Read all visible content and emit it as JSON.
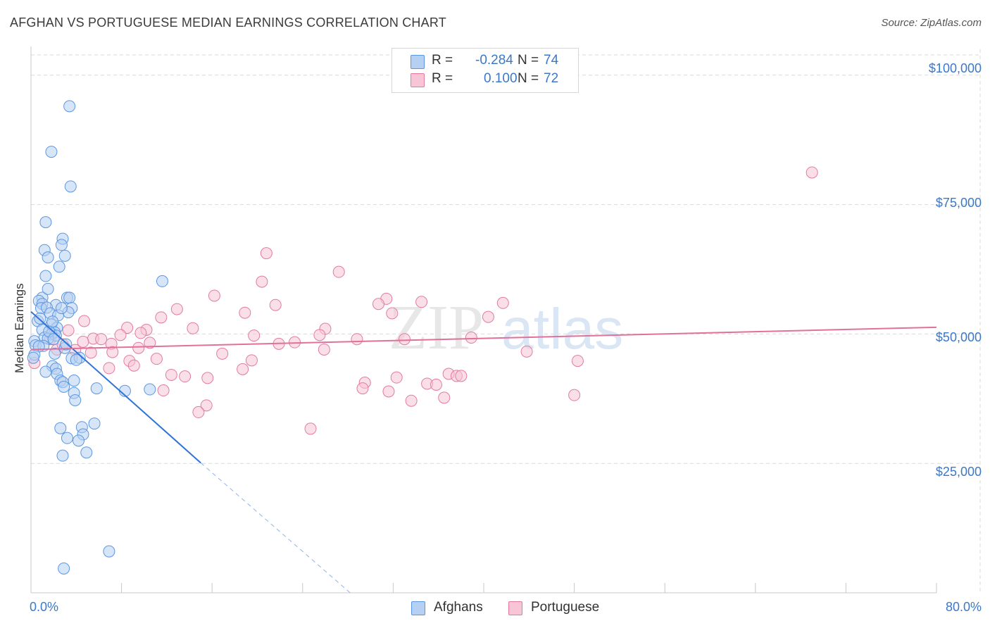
{
  "title": "AFGHAN VS PORTUGUESE MEDIAN EARNINGS CORRELATION CHART",
  "source": "Source: ZipAtlas.com",
  "watermark": {
    "zip": "ZIP",
    "atlas": "atlas"
  },
  "colors": {
    "afghan": "#5b97e1",
    "afghan_fill": "#b6d0f3",
    "portuguese": "#e27ba0",
    "portuguese_fill": "#f7c5d6",
    "axis_text": "#3b78c9",
    "grid": "#d9d9d9"
  },
  "legend": {
    "rows": [
      {
        "r_label": "R =",
        "r_value": "-0.284",
        "n_label": "N =",
        "n_value": "74"
      },
      {
        "r_label": "R =",
        "r_value": "0.100",
        "n_label": "N =",
        "n_value": "72"
      }
    ]
  },
  "bottom_legend": {
    "afghan": "Afghans",
    "portuguese": "Portuguese"
  },
  "chart_data": {
    "type": "scatter",
    "title": "AFGHAN VS PORTUGUESE MEDIAN EARNINGS CORRELATION CHART",
    "xlabel": "",
    "ylabel": "Median Earnings",
    "xlim": [
      0,
      80
    ],
    "ylim": [
      0,
      105000
    ],
    "x_tick_labels": {
      "min": "0.0%",
      "max": "80.0%"
    },
    "y_ticks": [
      {
        "value": 25000,
        "label": "$25,000"
      },
      {
        "value": 50000,
        "label": "$50,000"
      },
      {
        "value": 75000,
        "label": "$75,000"
      },
      {
        "value": 100000,
        "label": "$100,000"
      }
    ],
    "grid": true,
    "series": [
      {
        "name": "Afghans",
        "r": -0.284,
        "n": 74,
        "trend": {
          "x0": 0,
          "y0": 54300,
          "x1": 15,
          "y1": 25100,
          "dash_to_x": 28.2,
          "dash_to_y": 0
        },
        "points": [
          [
            3.4,
            94000
          ],
          [
            1.8,
            85200
          ],
          [
            3.5,
            78500
          ],
          [
            1.3,
            71600
          ],
          [
            2.8,
            68400
          ],
          [
            2.7,
            67200
          ],
          [
            1.2,
            66200
          ],
          [
            3.0,
            65100
          ],
          [
            1.5,
            64800
          ],
          [
            2.5,
            63000
          ],
          [
            1.3,
            61200
          ],
          [
            11.6,
            60200
          ],
          [
            1.0,
            57000
          ],
          [
            1.5,
            58700
          ],
          [
            3.2,
            57000
          ],
          [
            3.4,
            57000
          ],
          [
            0.7,
            56400
          ],
          [
            1.0,
            55800
          ],
          [
            2.2,
            55600
          ],
          [
            0.9,
            55000
          ],
          [
            1.4,
            55100
          ],
          [
            3.6,
            55000
          ],
          [
            1.7,
            54000
          ],
          [
            3.3,
            54200
          ],
          [
            2.4,
            53600
          ],
          [
            0.6,
            52500
          ],
          [
            1.8,
            51800
          ],
          [
            1.0,
            50800
          ],
          [
            2.3,
            51200
          ],
          [
            2.1,
            50300
          ],
          [
            1.8,
            50000
          ],
          [
            2.2,
            49700
          ],
          [
            1.2,
            49300
          ],
          [
            1.5,
            49100
          ],
          [
            0.3,
            48600
          ],
          [
            0.4,
            47800
          ],
          [
            1.1,
            47700
          ],
          [
            0.7,
            47600
          ],
          [
            3.0,
            47300
          ],
          [
            2.1,
            46200
          ],
          [
            0.3,
            46000
          ],
          [
            0.2,
            45400
          ],
          [
            3.6,
            45300
          ],
          [
            4.3,
            45400
          ],
          [
            1.9,
            43800
          ],
          [
            2.2,
            43300
          ],
          [
            1.3,
            42700
          ],
          [
            2.3,
            42300
          ],
          [
            2.6,
            41000
          ],
          [
            3.8,
            41000
          ],
          [
            2.8,
            40700
          ],
          [
            2.9,
            39800
          ],
          [
            5.8,
            39500
          ],
          [
            8.3,
            39000
          ],
          [
            10.5,
            39300
          ],
          [
            3.8,
            38600
          ],
          [
            3.9,
            37200
          ],
          [
            5.6,
            32700
          ],
          [
            2.6,
            31800
          ],
          [
            4.5,
            32000
          ],
          [
            4.6,
            30600
          ],
          [
            3.2,
            29900
          ],
          [
            4.2,
            29400
          ],
          [
            4.9,
            27100
          ],
          [
            2.8,
            26500
          ],
          [
            6.9,
            8000
          ],
          [
            2.9,
            4700
          ],
          [
            1.6,
            50500
          ],
          [
            2.0,
            49000
          ],
          [
            3.1,
            48000
          ],
          [
            0.8,
            53000
          ],
          [
            2.7,
            55000
          ],
          [
            1.9,
            52400
          ],
          [
            4.0,
            45000
          ]
        ]
      },
      {
        "name": "Portuguese",
        "r": 0.1,
        "n": 72,
        "trend": {
          "x0": 0,
          "y0": 47000,
          "x1": 80,
          "y1": 51300
        },
        "points": [
          [
            69.0,
            81200
          ],
          [
            20.8,
            65600
          ],
          [
            27.2,
            62000
          ],
          [
            20.4,
            60100
          ],
          [
            16.2,
            57400
          ],
          [
            31.4,
            56800
          ],
          [
            34.5,
            56200
          ],
          [
            41.7,
            56000
          ],
          [
            21.6,
            55600
          ],
          [
            30.7,
            55800
          ],
          [
            18.9,
            54100
          ],
          [
            12.9,
            54800
          ],
          [
            31.9,
            54000
          ],
          [
            40.4,
            53300
          ],
          [
            11.5,
            53200
          ],
          [
            4.7,
            52500
          ],
          [
            8.5,
            51200
          ],
          [
            14.3,
            51100
          ],
          [
            26.0,
            51000
          ],
          [
            10.2,
            50800
          ],
          [
            3.3,
            50700
          ],
          [
            9.7,
            50200
          ],
          [
            7.9,
            49800
          ],
          [
            19.7,
            49700
          ],
          [
            25.5,
            49800
          ],
          [
            33.0,
            49000
          ],
          [
            28.8,
            49000
          ],
          [
            38.9,
            49300
          ],
          [
            5.5,
            49100
          ],
          [
            6.2,
            49000
          ],
          [
            4.6,
            48500
          ],
          [
            10.5,
            48300
          ],
          [
            21.9,
            48100
          ],
          [
            23.3,
            48400
          ],
          [
            7.1,
            48100
          ],
          [
            9.5,
            47300
          ],
          [
            25.9,
            47000
          ],
          [
            3.9,
            46900
          ],
          [
            5.3,
            46400
          ],
          [
            7.2,
            46500
          ],
          [
            16.9,
            46200
          ],
          [
            43.8,
            46600
          ],
          [
            19.5,
            44900
          ],
          [
            11.1,
            45200
          ],
          [
            8.7,
            44800
          ],
          [
            9.1,
            43900
          ],
          [
            48.3,
            44800
          ],
          [
            6.9,
            43400
          ],
          [
            18.7,
            43200
          ],
          [
            12.4,
            42100
          ],
          [
            13.6,
            41800
          ],
          [
            15.6,
            41500
          ],
          [
            36.9,
            42300
          ],
          [
            37.6,
            41900
          ],
          [
            38.0,
            41900
          ],
          [
            32.3,
            41600
          ],
          [
            29.5,
            40600
          ],
          [
            35.0,
            40400
          ],
          [
            35.8,
            40200
          ],
          [
            29.3,
            39500
          ],
          [
            11.7,
            39100
          ],
          [
            31.6,
            38900
          ],
          [
            48.0,
            38200
          ],
          [
            36.5,
            37700
          ],
          [
            33.6,
            37100
          ],
          [
            15.5,
            36200
          ],
          [
            14.8,
            34900
          ],
          [
            24.7,
            31700
          ],
          [
            0.3,
            44400
          ],
          [
            2.3,
            47000
          ],
          [
            2.8,
            48000
          ],
          [
            1.7,
            49000
          ]
        ]
      }
    ]
  }
}
